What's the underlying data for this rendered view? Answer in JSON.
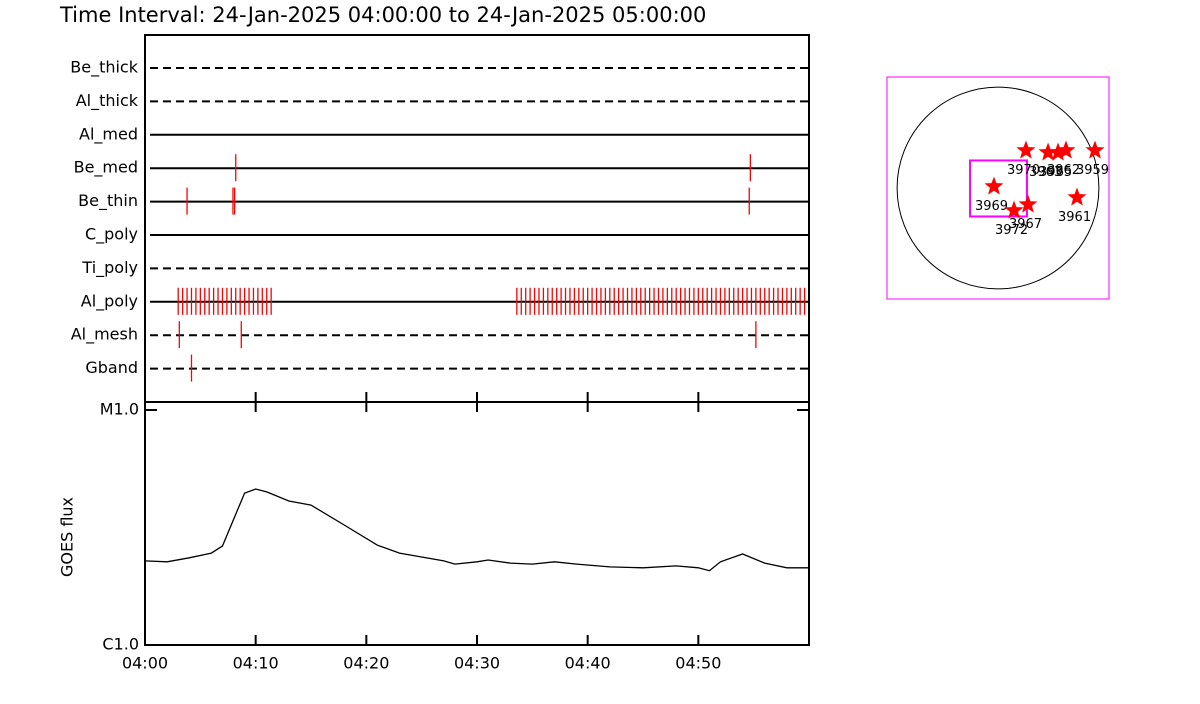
{
  "chart_data": [
    {
      "type": "timeline",
      "title": "Time Interval: 24-Jan-2025 04:00:00 to 24-Jan-2025 05:00:00",
      "xlim": [
        0,
        60
      ],
      "color": "#ff0000",
      "rows": [
        {
          "name": "Be_thick",
          "style": "dashed",
          "times": []
        },
        {
          "name": "Al_thick",
          "style": "dashed",
          "times": []
        },
        {
          "name": "Al_med",
          "style": "solid",
          "times": []
        },
        {
          "name": "Be_med",
          "style": "solid",
          "times": [
            8.2,
            54.7
          ]
        },
        {
          "name": "Be_thin",
          "style": "solid",
          "times": [
            3.8,
            7.95,
            8.1,
            54.6
          ]
        },
        {
          "name": "C_poly",
          "style": "solid",
          "times": []
        },
        {
          "name": "Ti_poly",
          "style": "dashed",
          "times": []
        },
        {
          "name": "Al_poly",
          "style": "solid",
          "times": [
            3.0,
            3.4,
            3.8,
            4.2,
            4.6,
            5.0,
            5.4,
            5.8,
            6.2,
            6.6,
            7.0,
            7.4,
            7.8,
            8.2,
            8.6,
            9.0,
            9.4,
            9.8,
            10.2,
            10.6,
            11.0,
            11.4,
            33.6,
            34.0,
            34.4,
            34.8,
            35.2,
            35.6,
            36.0,
            36.4,
            36.8,
            37.2,
            37.6,
            38.0,
            38.4,
            38.8,
            39.2,
            39.6,
            40.0,
            40.4,
            40.8,
            41.2,
            41.6,
            42.0,
            42.4,
            42.8,
            43.2,
            43.6,
            44.0,
            44.4,
            44.8,
            45.2,
            45.6,
            46.0,
            46.4,
            46.8,
            47.2,
            47.6,
            48.0,
            48.4,
            48.8,
            49.2,
            49.6,
            50.0,
            50.4,
            50.8,
            51.2,
            51.6,
            52.0,
            52.4,
            52.8,
            53.2,
            53.6,
            54.0,
            54.4,
            54.8,
            55.2,
            55.6,
            56.0,
            56.4,
            56.8,
            57.2,
            57.6,
            58.0,
            58.4,
            58.8,
            59.2,
            59.6
          ]
        },
        {
          "name": "Al_mesh",
          "style": "dashed",
          "times": [
            3.1,
            8.7,
            55.2
          ]
        },
        {
          "name": "Gband",
          "style": "dashed",
          "times": [
            4.2
          ]
        }
      ]
    },
    {
      "type": "line",
      "ylabel": "GOES flux",
      "log_y": true,
      "color": "#000000",
      "xlim": [
        0,
        60
      ],
      "xticks": [
        {
          "value": 0,
          "label": "04:00"
        },
        {
          "value": 10,
          "label": "04:10"
        },
        {
          "value": 20,
          "label": "04:20"
        },
        {
          "value": 30,
          "label": "04:30"
        },
        {
          "value": 40,
          "label": "04:40"
        },
        {
          "value": 50,
          "label": "04:50"
        }
      ],
      "ylim": [
        1e-06,
        1e-05
      ],
      "yticks": [
        {
          "value": 1e-06,
          "label": "C1.0"
        },
        {
          "value": 1e-05,
          "label": "M1.0"
        }
      ],
      "x": [
        0,
        2,
        4,
        6,
        7,
        9,
        10,
        11,
        13,
        15,
        18,
        21,
        23,
        27,
        28,
        30,
        31,
        33,
        35,
        37,
        39,
        42,
        45,
        48,
        50,
        51,
        52,
        54,
        56,
        58,
        60
      ],
      "values": [
        2.28e-06,
        2.26e-06,
        2.35e-06,
        2.46e-06,
        2.64e-06,
        4.43e-06,
        4.61e-06,
        4.48e-06,
        4.1e-06,
        3.94e-06,
        3.24e-06,
        2.66e-06,
        2.46e-06,
        2.28e-06,
        2.21e-06,
        2.26e-06,
        2.3e-06,
        2.23e-06,
        2.21e-06,
        2.26e-06,
        2.21e-06,
        2.15e-06,
        2.13e-06,
        2.17e-06,
        2.13e-06,
        2.07e-06,
        2.26e-06,
        2.44e-06,
        2.23e-06,
        2.13e-06,
        2.13e-06
      ]
    },
    {
      "type": "map",
      "xlim": [
        -1100,
        1100
      ],
      "ylim": [
        -1100,
        1100
      ],
      "solar_radius": 1000,
      "frame_color": "#ff00ff",
      "fov": {
        "x": [
          -277,
          287
        ],
        "y": [
          -282,
          273
        ]
      },
      "color": "#ff0000",
      "regions": [
        {
          "name": "3970",
          "x": 277,
          "y": 372
        },
        {
          "name": "3963",
          "x": 496,
          "y": 352
        },
        {
          "name": "3965",
          "x": 595,
          "y": 352
        },
        {
          "name": "3962",
          "x": 674,
          "y": 372
        },
        {
          "name": "3959",
          "x": 961,
          "y": 372
        },
        {
          "name": "3969",
          "x": -40,
          "y": 15
        },
        {
          "name": "3967",
          "x": 297,
          "y": -164
        },
        {
          "name": "3972",
          "x": 159,
          "y": -223
        },
        {
          "name": "3961",
          "x": 783,
          "y": -94
        }
      ]
    }
  ]
}
